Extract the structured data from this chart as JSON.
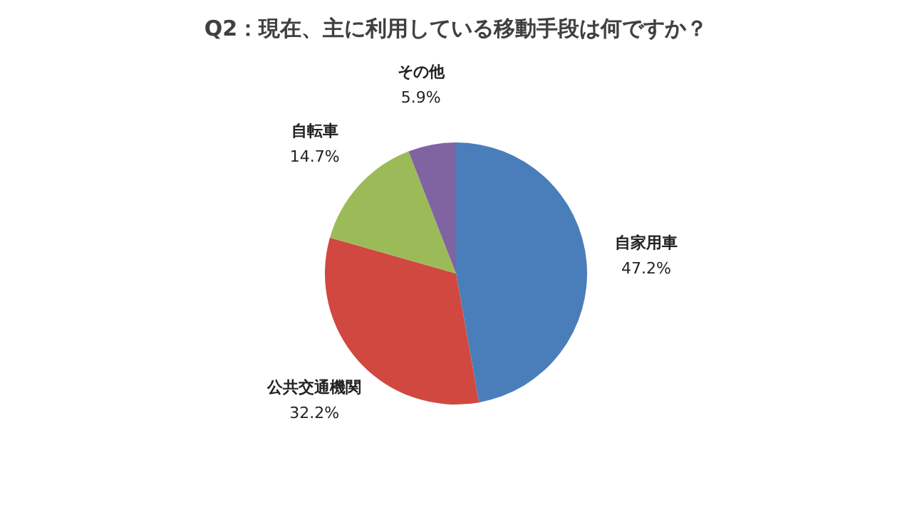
{
  "chart_data": {
    "type": "pie",
    "title": "Q2：現在、主に利用している移動手段は何ですか？",
    "categories": [
      "自家用車",
      "公共交通機関",
      "自転車",
      "その他"
    ],
    "values": [
      47.2,
      32.2,
      14.7,
      5.9
    ],
    "colors": [
      "#4a7ebb",
      "#d0483f",
      "#9bbb59",
      "#8064a2"
    ],
    "value_labels": [
      "47.2%",
      "32.2%",
      "14.7%",
      "5.9%"
    ],
    "legend": false
  }
}
